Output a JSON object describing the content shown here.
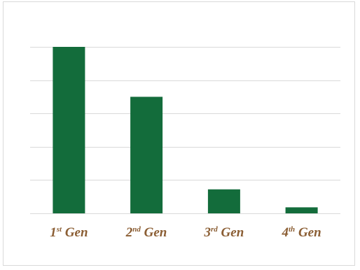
{
  "chart_data": {
    "type": "bar",
    "categories": [
      {
        "num": "1",
        "suffix": "st",
        "word": "Gen"
      },
      {
        "num": "2",
        "suffix": "nd",
        "word": "Gen"
      },
      {
        "num": "3",
        "suffix": "rd",
        "word": "Gen"
      },
      {
        "num": "4",
        "suffix": "th",
        "word": "Gen"
      }
    ],
    "values": [
      5.0,
      3.5,
      0.72,
      0.18
    ],
    "ylim": [
      0,
      5
    ],
    "yticks": [
      0,
      1,
      2,
      3,
      4,
      5
    ],
    "grid": true,
    "title": "",
    "xlabel": "",
    "ylabel": "",
    "bar_color": "#136c3b",
    "grid_color": "#d9d9d9",
    "label_color": "#8b5e34"
  }
}
